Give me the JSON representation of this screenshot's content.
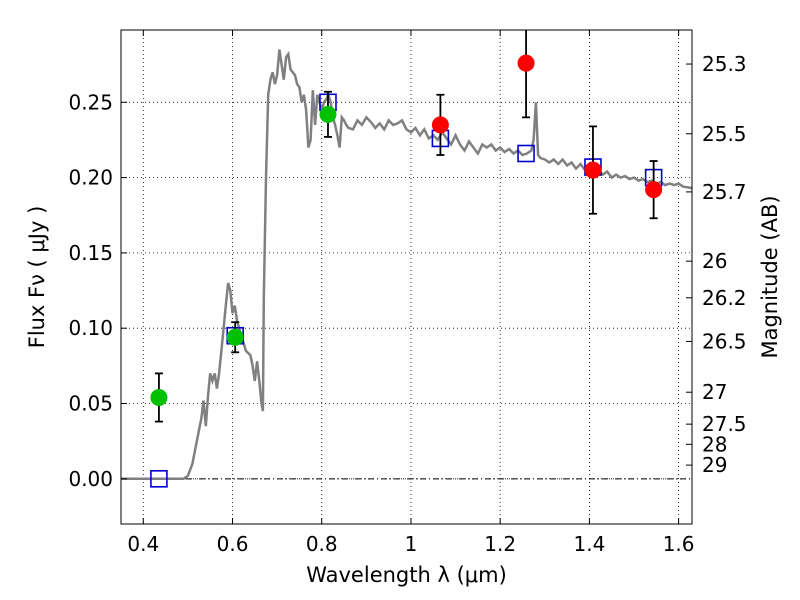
{
  "chart_data": {
    "type": "scatter",
    "xlabel": "Wavelength  λ (μm)",
    "ylabel_left": "Flux  Fν  ( μJy )",
    "ylabel_right": "Magnitude (AB)",
    "xlim": [
      0.35,
      1.63
    ],
    "ylim": [
      -0.03,
      0.298
    ],
    "x_ticks": [
      0.4,
      0.6,
      0.8,
      1,
      1.2,
      1.4,
      1.6
    ],
    "x_tick_labels": [
      "0.4",
      "0.6",
      "0.8",
      "1",
      "1.2",
      "1.4",
      "1.6"
    ],
    "y_ticks": [
      0.0,
      0.05,
      0.1,
      0.15,
      0.2,
      0.25
    ],
    "y_tick_labels": [
      "0.00",
      "0.05",
      "0.10",
      "0.15",
      "0.20",
      "0.25"
    ],
    "right_ticks": [
      {
        "label": "25.3",
        "flux": 0.2754
      },
      {
        "label": "25.5",
        "flux": 0.2291
      },
      {
        "label": "25.7",
        "flux": 0.1905
      },
      {
        "label": "26",
        "flux": 0.1445
      },
      {
        "label": "26.2",
        "flux": 0.1202
      },
      {
        "label": "26.5",
        "flux": 0.0912
      },
      {
        "label": "27",
        "flux": 0.0575
      },
      {
        "label": "27.5",
        "flux": 0.0363
      },
      {
        "label": "28",
        "flux": 0.0229
      },
      {
        "label": "29",
        "flux": 0.0091
      }
    ],
    "grid": true,
    "model_spectrum": {
      "color": "#808080",
      "points": [
        [
          0.35,
          0.0
        ],
        [
          0.49,
          0.0
        ],
        [
          0.5,
          0.002
        ],
        [
          0.51,
          0.01
        ],
        [
          0.52,
          0.025
        ],
        [
          0.53,
          0.04
        ],
        [
          0.535,
          0.052
        ],
        [
          0.54,
          0.035
        ],
        [
          0.545,
          0.055
        ],
        [
          0.55,
          0.07
        ],
        [
          0.555,
          0.065
        ],
        [
          0.56,
          0.07
        ],
        [
          0.565,
          0.06
        ],
        [
          0.57,
          0.07
        ],
        [
          0.575,
          0.085
        ],
        [
          0.58,
          0.1
        ],
        [
          0.585,
          0.115
        ],
        [
          0.59,
          0.13
        ],
        [
          0.595,
          0.125
        ],
        [
          0.6,
          0.11
        ],
        [
          0.605,
          0.115
        ],
        [
          0.61,
          0.105
        ],
        [
          0.615,
          0.1
        ],
        [
          0.62,
          0.095
        ],
        [
          0.625,
          0.09
        ],
        [
          0.63,
          0.085
        ],
        [
          0.64,
          0.082
        ],
        [
          0.645,
          0.075
        ],
        [
          0.65,
          0.065
        ],
        [
          0.655,
          0.078
        ],
        [
          0.66,
          0.065
        ],
        [
          0.665,
          0.05
        ],
        [
          0.668,
          0.045
        ],
        [
          0.67,
          0.12
        ],
        [
          0.675,
          0.2
        ],
        [
          0.68,
          0.255
        ],
        [
          0.685,
          0.265
        ],
        [
          0.69,
          0.27
        ],
        [
          0.695,
          0.262
        ],
        [
          0.7,
          0.268
        ],
        [
          0.705,
          0.285
        ],
        [
          0.71,
          0.275
        ],
        [
          0.715,
          0.265
        ],
        [
          0.72,
          0.28
        ],
        [
          0.725,
          0.282
        ],
        [
          0.73,
          0.272
        ],
        [
          0.735,
          0.27
        ],
        [
          0.74,
          0.268
        ],
        [
          0.745,
          0.262
        ],
        [
          0.75,
          0.26
        ],
        [
          0.755,
          0.25
        ],
        [
          0.76,
          0.255
        ],
        [
          0.765,
          0.245
        ],
        [
          0.77,
          0.22
        ],
        [
          0.775,
          0.225
        ],
        [
          0.78,
          0.258
        ],
        [
          0.785,
          0.235
        ],
        [
          0.79,
          0.255
        ],
        [
          0.795,
          0.25
        ],
        [
          0.8,
          0.245
        ],
        [
          0.805,
          0.25
        ],
        [
          0.81,
          0.252
        ],
        [
          0.815,
          0.255
        ],
        [
          0.82,
          0.25
        ],
        [
          0.825,
          0.24
        ],
        [
          0.83,
          0.235
        ],
        [
          0.835,
          0.228
        ],
        [
          0.84,
          0.22
        ],
        [
          0.845,
          0.24
        ],
        [
          0.85,
          0.238
        ],
        [
          0.855,
          0.235
        ],
        [
          0.86,
          0.233
        ],
        [
          0.87,
          0.232
        ],
        [
          0.88,
          0.238
        ],
        [
          0.89,
          0.235
        ],
        [
          0.9,
          0.24
        ],
        [
          0.91,
          0.237
        ],
        [
          0.92,
          0.233
        ],
        [
          0.93,
          0.236
        ],
        [
          0.94,
          0.232
        ],
        [
          0.95,
          0.238
        ],
        [
          0.96,
          0.235
        ],
        [
          0.97,
          0.236
        ],
        [
          0.98,
          0.238
        ],
        [
          0.99,
          0.232
        ],
        [
          1.0,
          0.23
        ],
        [
          1.01,
          0.233
        ],
        [
          1.02,
          0.228
        ],
        [
          1.03,
          0.232
        ],
        [
          1.04,
          0.226
        ],
        [
          1.05,
          0.228
        ],
        [
          1.06,
          0.225
        ],
        [
          1.07,
          0.23
        ],
        [
          1.08,
          0.226
        ],
        [
          1.09,
          0.222
        ],
        [
          1.1,
          0.228
        ],
        [
          1.11,
          0.222
        ],
        [
          1.12,
          0.218
        ],
        [
          1.13,
          0.224
        ],
        [
          1.14,
          0.22
        ],
        [
          1.15,
          0.216
        ],
        [
          1.16,
          0.222
        ],
        [
          1.17,
          0.22
        ],
        [
          1.18,
          0.222
        ],
        [
          1.19,
          0.218
        ],
        [
          1.2,
          0.22
        ],
        [
          1.21,
          0.217
        ],
        [
          1.22,
          0.219
        ],
        [
          1.23,
          0.216
        ],
        [
          1.24,
          0.218
        ],
        [
          1.25,
          0.215
        ],
        [
          1.26,
          0.216
        ],
        [
          1.27,
          0.218
        ],
        [
          1.275,
          0.225
        ],
        [
          1.28,
          0.25
        ],
        [
          1.285,
          0.215
        ],
        [
          1.29,
          0.213
        ],
        [
          1.3,
          0.212
        ],
        [
          1.31,
          0.21
        ],
        [
          1.32,
          0.212
        ],
        [
          1.33,
          0.209
        ],
        [
          1.34,
          0.212
        ],
        [
          1.35,
          0.208
        ],
        [
          1.36,
          0.21
        ],
        [
          1.37,
          0.206
        ],
        [
          1.38,
          0.209
        ],
        [
          1.39,
          0.205
        ],
        [
          1.4,
          0.207
        ],
        [
          1.41,
          0.203
        ],
        [
          1.42,
          0.205
        ],
        [
          1.43,
          0.202
        ],
        [
          1.44,
          0.204
        ],
        [
          1.45,
          0.2
        ],
        [
          1.46,
          0.202
        ],
        [
          1.47,
          0.2
        ],
        [
          1.48,
          0.201
        ],
        [
          1.49,
          0.199
        ],
        [
          1.5,
          0.2
        ],
        [
          1.51,
          0.198
        ],
        [
          1.52,
          0.199
        ],
        [
          1.53,
          0.197
        ],
        [
          1.54,
          0.198
        ],
        [
          1.55,
          0.196
        ],
        [
          1.56,
          0.197
        ],
        [
          1.57,
          0.195
        ],
        [
          1.58,
          0.196
        ],
        [
          1.59,
          0.195
        ],
        [
          1.6,
          0.196
        ],
        [
          1.61,
          0.194
        ],
        [
          1.63,
          0.193
        ]
      ]
    },
    "series": [
      {
        "marker": "circle",
        "color": "#00c000",
        "points": [
          {
            "x": 0.435,
            "y": 0.054,
            "err": 0.016
          },
          {
            "x": 0.606,
            "y": 0.094,
            "err": 0.01
          },
          {
            "x": 0.814,
            "y": 0.242,
            "err": 0.015
          }
        ]
      },
      {
        "marker": "circle",
        "color": "#ff0000",
        "points": [
          {
            "x": 1.066,
            "y": 0.235,
            "err": 0.02
          },
          {
            "x": 1.258,
            "y": 0.276,
            "err": 0.036
          },
          {
            "x": 1.408,
            "y": 0.205,
            "err": 0.029
          },
          {
            "x": 1.544,
            "y": 0.192,
            "err": 0.019
          }
        ]
      },
      {
        "marker": "square-open",
        "color": "#0000cc",
        "points": [
          {
            "x": 0.435,
            "y": 0.0
          },
          {
            "x": 0.606,
            "y": 0.095
          },
          {
            "x": 0.814,
            "y": 0.25
          },
          {
            "x": 1.066,
            "y": 0.226
          },
          {
            "x": 1.258,
            "y": 0.216
          },
          {
            "x": 1.408,
            "y": 0.207
          },
          {
            "x": 1.544,
            "y": 0.2
          }
        ]
      }
    ]
  }
}
